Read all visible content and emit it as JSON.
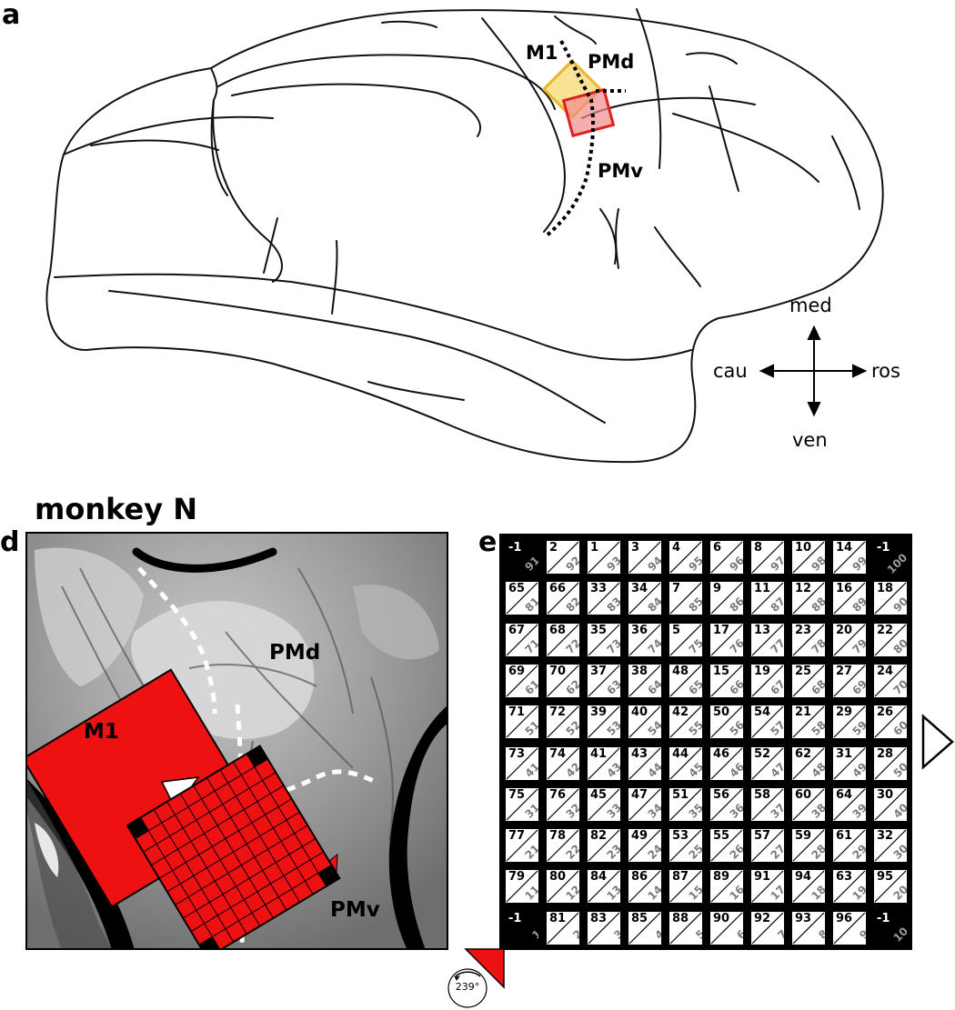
{
  "panel_a": {
    "letter": "a",
    "labels": {
      "m1": "M1",
      "pmd": "PMd",
      "pmv": "PMv"
    },
    "compass": {
      "up": "med",
      "down": "ven",
      "left": "cau",
      "right": "ros"
    }
  },
  "panel_d": {
    "letter": "d",
    "title": "monkey N",
    "labels": {
      "pmd": "PMd",
      "m1": "M1",
      "pmv": "PMv"
    }
  },
  "panel_e": {
    "letter": "e",
    "rotation_label": "239°",
    "grid": [
      [
        [
          "-1",
          "91"
        ],
        [
          "2",
          "92"
        ],
        [
          "1",
          "93"
        ],
        [
          "3",
          "94"
        ],
        [
          "4",
          "95"
        ],
        [
          "6",
          "96"
        ],
        [
          "8",
          "97"
        ],
        [
          "10",
          "98"
        ],
        [
          "14",
          "99"
        ],
        [
          "-1",
          "100"
        ]
      ],
      [
        [
          "65",
          "81"
        ],
        [
          "66",
          "82"
        ],
        [
          "33",
          "83"
        ],
        [
          "34",
          "84"
        ],
        [
          "7",
          "85"
        ],
        [
          "9",
          "86"
        ],
        [
          "11",
          "87"
        ],
        [
          "12",
          "88"
        ],
        [
          "16",
          "89"
        ],
        [
          "18",
          "90"
        ]
      ],
      [
        [
          "67",
          "71"
        ],
        [
          "68",
          "72"
        ],
        [
          "35",
          "73"
        ],
        [
          "36",
          "74"
        ],
        [
          "5",
          "75"
        ],
        [
          "17",
          "76"
        ],
        [
          "13",
          "77"
        ],
        [
          "23",
          "78"
        ],
        [
          "20",
          "79"
        ],
        [
          "22",
          "80"
        ]
      ],
      [
        [
          "69",
          "61"
        ],
        [
          "70",
          "62"
        ],
        [
          "37",
          "63"
        ],
        [
          "38",
          "64"
        ],
        [
          "48",
          "65"
        ],
        [
          "15",
          "66"
        ],
        [
          "19",
          "67"
        ],
        [
          "25",
          "68"
        ],
        [
          "27",
          "69"
        ],
        [
          "24",
          "70"
        ]
      ],
      [
        [
          "71",
          "51"
        ],
        [
          "72",
          "52"
        ],
        [
          "39",
          "53"
        ],
        [
          "40",
          "54"
        ],
        [
          "42",
          "55"
        ],
        [
          "50",
          "56"
        ],
        [
          "54",
          "57"
        ],
        [
          "21",
          "58"
        ],
        [
          "29",
          "59"
        ],
        [
          "26",
          "60"
        ]
      ],
      [
        [
          "73",
          "41"
        ],
        [
          "74",
          "42"
        ],
        [
          "41",
          "43"
        ],
        [
          "43",
          "44"
        ],
        [
          "44",
          "45"
        ],
        [
          "46",
          "46"
        ],
        [
          "52",
          "47"
        ],
        [
          "62",
          "48"
        ],
        [
          "31",
          "49"
        ],
        [
          "28",
          "50"
        ]
      ],
      [
        [
          "75",
          "31"
        ],
        [
          "76",
          "32"
        ],
        [
          "45",
          "33"
        ],
        [
          "47",
          "34"
        ],
        [
          "51",
          "35"
        ],
        [
          "56",
          "36"
        ],
        [
          "58",
          "37"
        ],
        [
          "60",
          "38"
        ],
        [
          "64",
          "39"
        ],
        [
          "30",
          "40"
        ]
      ],
      [
        [
          "77",
          "21"
        ],
        [
          "78",
          "22"
        ],
        [
          "82",
          "23"
        ],
        [
          "49",
          "24"
        ],
        [
          "53",
          "25"
        ],
        [
          "55",
          "26"
        ],
        [
          "57",
          "27"
        ],
        [
          "59",
          "28"
        ],
        [
          "61",
          "29"
        ],
        [
          "32",
          "30"
        ]
      ],
      [
        [
          "79",
          "11"
        ],
        [
          "80",
          "12"
        ],
        [
          "84",
          "13"
        ],
        [
          "86",
          "14"
        ],
        [
          "87",
          "15"
        ],
        [
          "89",
          "16"
        ],
        [
          "91",
          "17"
        ],
        [
          "94",
          "18"
        ],
        [
          "63",
          "19"
        ],
        [
          "95",
          "20"
        ]
      ],
      [
        [
          "-1",
          "1"
        ],
        [
          "81",
          "2"
        ],
        [
          "83",
          "3"
        ],
        [
          "85",
          "4"
        ],
        [
          "88",
          "5"
        ],
        [
          "90",
          "6"
        ],
        [
          "92",
          "7"
        ],
        [
          "93",
          "8"
        ],
        [
          "96",
          "9"
        ],
        [
          "-1",
          "10"
        ]
      ]
    ]
  },
  "colors": {
    "array_red": "#ee1111",
    "pmd_fill": "#f7d66a",
    "pmv_fill": "#f08c8c",
    "pmv_stroke": "#e02020",
    "pmd_stroke": "#e8b82a"
  }
}
